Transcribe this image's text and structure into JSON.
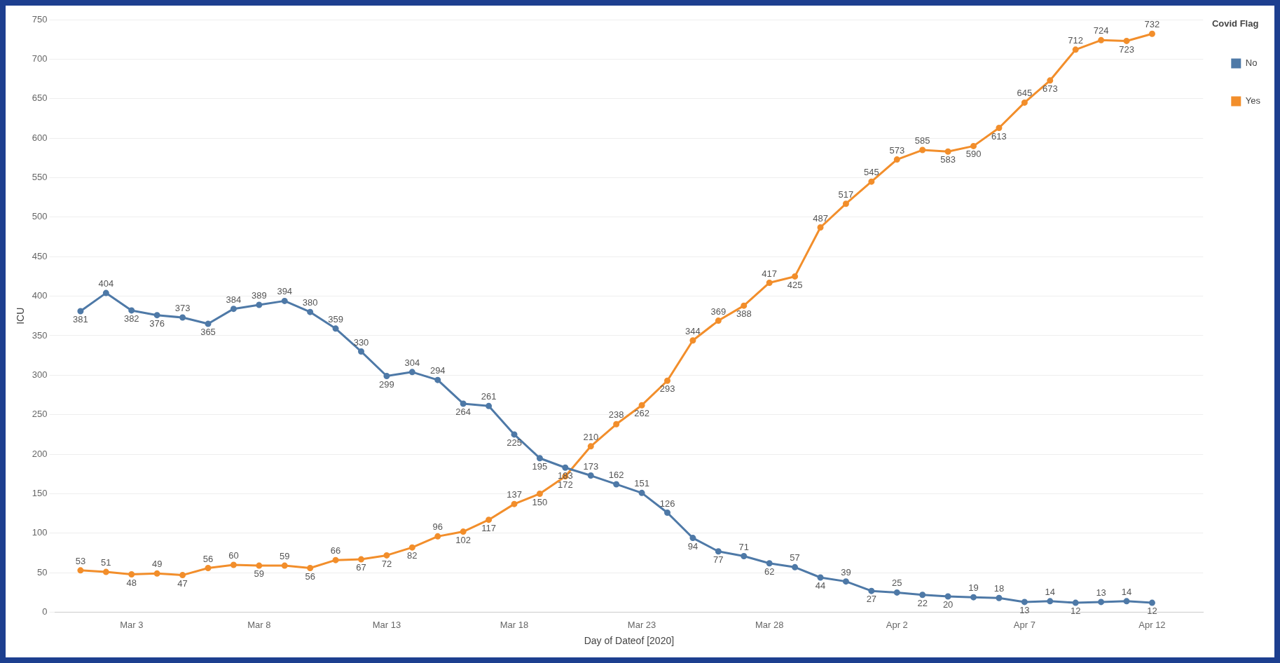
{
  "chart_data": {
    "type": "line",
    "xlabel": "Day of Dateof [2020]",
    "ylabel": "ICU",
    "legend_title": "Covid Flag",
    "legend": "top right",
    "grid": "y",
    "marker": "circle",
    "line_style": "solid",
    "data_labels": true,
    "x": [
      "2020-03-01",
      "2020-03-02",
      "2020-03-03",
      "2020-03-04",
      "2020-03-05",
      "2020-03-06",
      "2020-03-07",
      "2020-03-08",
      "2020-03-09",
      "2020-03-10",
      "2020-03-11",
      "2020-03-12",
      "2020-03-13",
      "2020-03-14",
      "2020-03-15",
      "2020-03-16",
      "2020-03-17",
      "2020-03-18",
      "2020-03-19",
      "2020-03-20",
      "2020-03-21",
      "2020-03-22",
      "2020-03-23",
      "2020-03-24",
      "2020-03-25",
      "2020-03-26",
      "2020-03-27",
      "2020-03-28",
      "2020-03-29",
      "2020-03-30",
      "2020-03-31",
      "2020-04-01",
      "2020-04-02",
      "2020-04-03",
      "2020-04-04",
      "2020-04-05",
      "2020-04-06",
      "2020-04-07",
      "2020-04-08",
      "2020-04-09",
      "2020-04-10",
      "2020-04-11",
      "2020-04-12"
    ],
    "xlim": [
      "2020-02-29",
      "2020-04-14"
    ],
    "xticks": [
      {
        "value": "2020-03-03",
        "label": "Mar 3"
      },
      {
        "value": "2020-03-08",
        "label": "Mar 8"
      },
      {
        "value": "2020-03-13",
        "label": "Mar 13"
      },
      {
        "value": "2020-03-18",
        "label": "Mar 18"
      },
      {
        "value": "2020-03-23",
        "label": "Mar 23"
      },
      {
        "value": "2020-03-28",
        "label": "Mar 28"
      },
      {
        "value": "2020-04-02",
        "label": "Apr 2"
      },
      {
        "value": "2020-04-07",
        "label": "Apr 7"
      },
      {
        "value": "2020-04-12",
        "label": "Apr 12"
      }
    ],
    "ylim": [
      0,
      750
    ],
    "yticks": [
      0,
      50,
      100,
      150,
      200,
      250,
      300,
      350,
      400,
      450,
      500,
      550,
      600,
      650,
      700,
      750
    ],
    "series": [
      {
        "name": "No",
        "color": "#4e79a7",
        "values": [
          381,
          404,
          382,
          376,
          373,
          365,
          384,
          389,
          394,
          380,
          359,
          330,
          299,
          304,
          294,
          264,
          261,
          225,
          195,
          183,
          173,
          162,
          151,
          126,
          94,
          77,
          71,
          62,
          57,
          44,
          39,
          27,
          25,
          22,
          20,
          19,
          18,
          13,
          14,
          12,
          13,
          14,
          12
        ]
      },
      {
        "name": "Yes",
        "color": "#f28e2b",
        "values": [
          53,
          51,
          48,
          49,
          47,
          56,
          60,
          59,
          59,
          56,
          66,
          67,
          72,
          82,
          96,
          102,
          117,
          137,
          150,
          172,
          210,
          238,
          262,
          293,
          344,
          369,
          388,
          417,
          425,
          487,
          517,
          545,
          573,
          585,
          583,
          590,
          613,
          645,
          673,
          712,
          724,
          723,
          732
        ]
      }
    ]
  }
}
